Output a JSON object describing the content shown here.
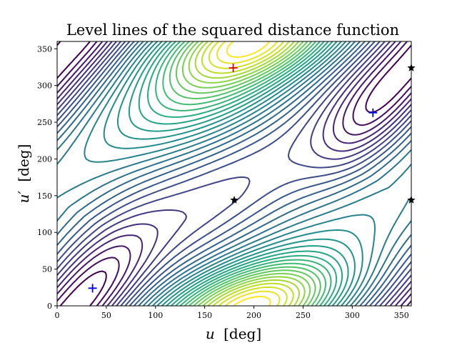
{
  "chart_data": {
    "type": "contour",
    "title": "Level lines of the squared distance function",
    "xlabel_main": "u",
    "xlabel_unit": "[deg]",
    "ylabel_main": "u′",
    "ylabel_unit": "[deg]",
    "xlim": [
      0,
      360
    ],
    "ylim": [
      0,
      360
    ],
    "xticks": [
      0,
      50,
      100,
      150,
      200,
      250,
      300,
      350
    ],
    "yticks": [
      0,
      50,
      100,
      150,
      200,
      250,
      300,
      350
    ],
    "colormap": "viridis",
    "level_count": 30,
    "markers": [
      {
        "type": "red-plus",
        "u": 179,
        "uprime": 324,
        "color": "#dd0000"
      },
      {
        "type": "blue-plus",
        "u": 36,
        "uprime": 24,
        "color": "#0000ee"
      },
      {
        "type": "blue-plus",
        "u": 321,
        "uprime": 263,
        "color": "#0000ee"
      },
      {
        "type": "black-star",
        "u": 180,
        "uprime": 144,
        "color": "#000000"
      },
      {
        "type": "black-star",
        "u": 360,
        "uprime": 144,
        "color": "#000000"
      },
      {
        "type": "black-star",
        "u": 360,
        "uprime": 324,
        "color": "#000000"
      }
    ]
  }
}
